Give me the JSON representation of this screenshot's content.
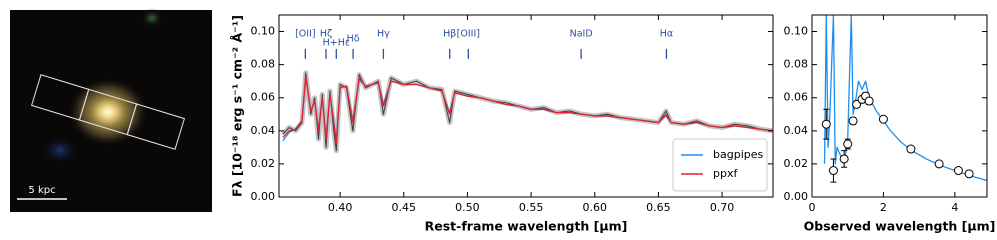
{
  "image_panel": {
    "scale_label": "5 kpc"
  },
  "chart_data": [
    {
      "type": "line",
      "xlabel": "Rest-frame wavelength [μm]",
      "ylabel": "Fλ [10⁻¹⁸ erg s⁻¹ cm⁻² Å⁻¹]",
      "xlim": [
        0.352,
        0.74
      ],
      "ylim": [
        0,
        0.11
      ],
      "xticks": [
        {
          "value": 0.4,
          "label": "0.40"
        },
        {
          "value": 0.45,
          "label": "0.45"
        },
        {
          "value": 0.5,
          "label": "0.50"
        },
        {
          "value": 0.55,
          "label": "0.55"
        },
        {
          "value": 0.6,
          "label": "0.60"
        },
        {
          "value": 0.65,
          "label": "0.65"
        },
        {
          "value": 0.7,
          "label": "0.70"
        }
      ],
      "yticks": [
        {
          "value": 0,
          "label": "0.00"
        },
        {
          "value": 0.02,
          "label": "0.02"
        },
        {
          "value": 0.04,
          "label": "0.04"
        },
        {
          "value": 0.06,
          "label": "0.06"
        },
        {
          "value": 0.08,
          "label": "0.08"
        },
        {
          "value": 0.1,
          "label": "0.10"
        }
      ],
      "legend": "lower right",
      "x": [
        0.355,
        0.36,
        0.365,
        0.37,
        0.373,
        0.377,
        0.38,
        0.383,
        0.386,
        0.389,
        0.392,
        0.395,
        0.397,
        0.4,
        0.405,
        0.41,
        0.415,
        0.42,
        0.43,
        0.434,
        0.44,
        0.45,
        0.46,
        0.47,
        0.48,
        0.486,
        0.49,
        0.5,
        0.51,
        0.52,
        0.53,
        0.54,
        0.55,
        0.56,
        0.57,
        0.58,
        0.59,
        0.6,
        0.61,
        0.62,
        0.63,
        0.64,
        0.65,
        0.656,
        0.66,
        0.67,
        0.68,
        0.69,
        0.7,
        0.71,
        0.72,
        0.73,
        0.74
      ],
      "series": [
        {
          "color": "#3a3a3a",
          "error_color": "#c4c4c4",
          "values": [
            0.038,
            0.042,
            0.04,
            0.045,
            0.075,
            0.05,
            0.06,
            0.035,
            0.062,
            0.03,
            0.064,
            0.04,
            0.028,
            0.068,
            0.066,
            0.04,
            0.074,
            0.066,
            0.07,
            0.05,
            0.072,
            0.068,
            0.07,
            0.066,
            0.065,
            0.045,
            0.064,
            0.062,
            0.06,
            0.058,
            0.057,
            0.055,
            0.053,
            0.054,
            0.051,
            0.052,
            0.05,
            0.049,
            0.05,
            0.048,
            0.047,
            0.046,
            0.045,
            0.052,
            0.045,
            0.044,
            0.046,
            0.043,
            0.042,
            0.044,
            0.043,
            0.041,
            0.04
          ]
        },
        {
          "name": "bagpipes",
          "color": "#1e8ff0",
          "values": [
            0.034,
            0.039,
            0.041,
            0.046,
            0.072,
            0.052,
            0.058,
            0.041,
            0.06,
            0.036,
            0.062,
            0.046,
            0.034,
            0.066,
            0.067,
            0.046,
            0.071,
            0.067,
            0.069,
            0.056,
            0.07,
            0.068,
            0.068,
            0.066,
            0.064,
            0.051,
            0.063,
            0.061,
            0.06,
            0.058,
            0.056,
            0.055,
            0.053,
            0.053,
            0.051,
            0.051,
            0.05,
            0.049,
            0.049,
            0.048,
            0.047,
            0.046,
            0.045,
            0.049,
            0.045,
            0.044,
            0.045,
            0.043,
            0.042,
            0.043,
            0.042,
            0.041,
            0.04
          ]
        },
        {
          "name": "ppxf",
          "color": "#e8202a",
          "values": [
            0.036,
            0.04,
            0.041,
            0.046,
            0.073,
            0.052,
            0.058,
            0.04,
            0.06,
            0.035,
            0.062,
            0.045,
            0.033,
            0.066,
            0.067,
            0.045,
            0.072,
            0.067,
            0.069,
            0.055,
            0.07,
            0.068,
            0.068,
            0.066,
            0.064,
            0.05,
            0.063,
            0.061,
            0.06,
            0.058,
            0.056,
            0.055,
            0.053,
            0.053,
            0.051,
            0.051,
            0.05,
            0.049,
            0.049,
            0.048,
            0.047,
            0.046,
            0.045,
            0.05,
            0.045,
            0.044,
            0.045,
            0.043,
            0.042,
            0.043,
            0.042,
            0.041,
            0.04
          ]
        }
      ],
      "annotations": [
        {
          "x": 0.3727,
          "label": "[OII]"
        },
        {
          "x": 0.3889,
          "label": "Hζ"
        },
        {
          "x": 0.397,
          "label": "H+Hε"
        },
        {
          "x": 0.4102,
          "label": "Hδ"
        },
        {
          "x": 0.434,
          "label": "Hγ"
        },
        {
          "x": 0.4861,
          "label": "Hβ"
        },
        {
          "x": 0.5007,
          "label": "[OIII]"
        },
        {
          "x": 0.5893,
          "label": "NaID"
        },
        {
          "x": 0.6563,
          "label": "Hα"
        }
      ],
      "annotation_color": "#2b4f9e"
    },
    {
      "type": "line",
      "xlabel": "Observed wavelength [μm]",
      "xlim": [
        0,
        4.9
      ],
      "ylim": [
        0,
        0.11
      ],
      "xticks": [
        0,
        2,
        4
      ],
      "yticks": [
        {
          "value": 0,
          "label": "0.00"
        },
        {
          "value": 0.02,
          "label": "0.02"
        },
        {
          "value": 0.04,
          "label": "0.04"
        },
        {
          "value": 0.06,
          "label": "0.06"
        },
        {
          "value": 0.08,
          "label": "0.08"
        },
        {
          "value": 0.1,
          "label": "0.10"
        }
      ],
      "series": [
        {
          "type": "line",
          "color": "#1e8ff0",
          "x": [
            0.35,
            0.4,
            0.45,
            0.5,
            0.6,
            0.65,
            0.7,
            0.8,
            0.9,
            1.0,
            1.1,
            1.15,
            1.2,
            1.3,
            1.4,
            1.5,
            1.6,
            1.7,
            1.8,
            2.0,
            2.2,
            2.5,
            2.8,
            3.2,
            3.6,
            4.0,
            4.4,
            4.9
          ],
          "values": [
            0.02,
            0.11,
            0.03,
            0.05,
            0.11,
            0.02,
            0.03,
            0.025,
            0.02,
            0.035,
            0.11,
            0.05,
            0.055,
            0.07,
            0.065,
            0.07,
            0.06,
            0.056,
            0.052,
            0.046,
            0.04,
            0.033,
            0.028,
            0.023,
            0.019,
            0.016,
            0.013,
            0.01
          ]
        },
        {
          "type": "scatter",
          "color": "#000000",
          "fill": "#ffffff",
          "x": [
            0.4,
            0.6,
            0.9,
            1.0,
            1.15,
            1.25,
            1.4,
            1.5,
            1.6,
            2.0,
            2.77,
            3.56,
            4.1,
            4.4
          ],
          "values": [
            0.044,
            0.016,
            0.023,
            0.032,
            0.046,
            0.056,
            0.059,
            0.061,
            0.058,
            0.047,
            0.029,
            0.02,
            0.016,
            0.014
          ],
          "errors": [
            0.009,
            0.007,
            0.005,
            0.003,
            0.002,
            0.002,
            0.002,
            0.002,
            0.002,
            0.001,
            0.001,
            0.001,
            0.001,
            0.001
          ]
        }
      ]
    }
  ]
}
